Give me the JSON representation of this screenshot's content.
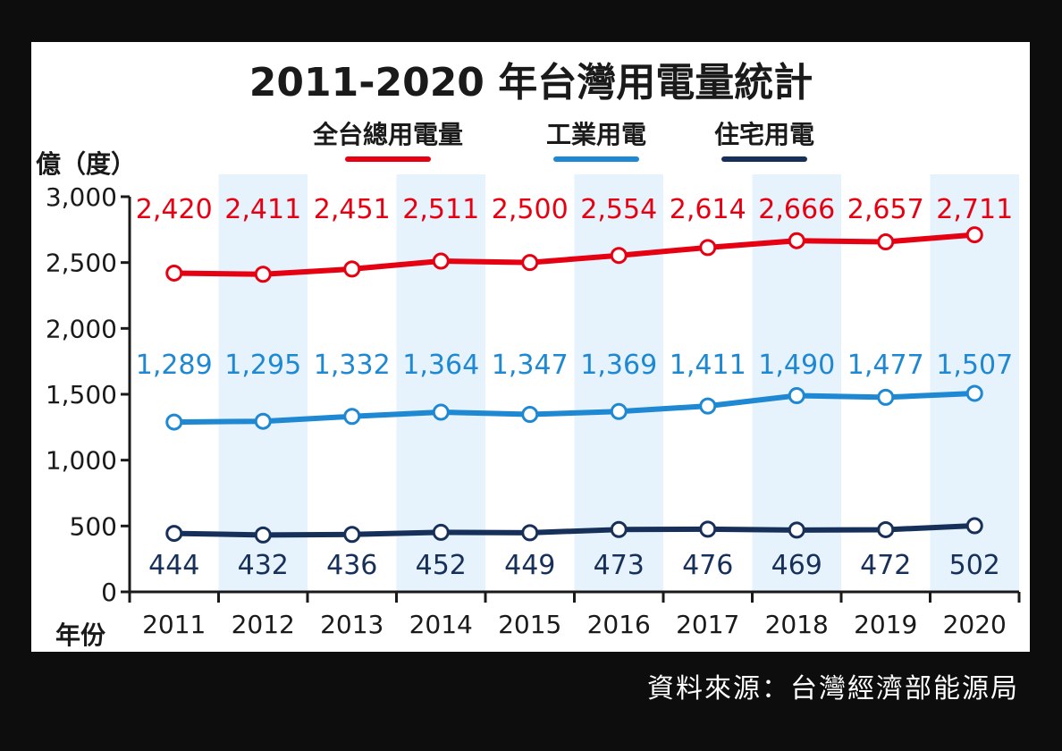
{
  "chart_data": {
    "type": "line",
    "title": "2011-2020 年台灣用電量統計",
    "ylabel": "億（度）",
    "xlabel": "年份",
    "ylim": [
      0,
      3000
    ],
    "yticks": [
      "3,000",
      "2,500",
      "2,000",
      "1,500",
      "1,000",
      "500",
      "0"
    ],
    "ytick_values": [
      3000,
      2500,
      2000,
      1500,
      1000,
      500,
      0
    ],
    "categories": [
      "2011",
      "2012",
      "2013",
      "2014",
      "2015",
      "2016",
      "2017",
      "2018",
      "2019",
      "2020"
    ],
    "series": [
      {
        "name": "全台總用電量",
        "color": "#e50012",
        "values": [
          2420,
          2411,
          2451,
          2511,
          2500,
          2554,
          2614,
          2666,
          2657,
          2711
        ],
        "labels": [
          "2,420",
          "2,411",
          "2,451",
          "2,511",
          "2,500",
          "2,554",
          "2,614",
          "2,666",
          "2,657",
          "2,711"
        ]
      },
      {
        "name": "工業用電",
        "color": "#1e88d2",
        "values": [
          1289,
          1295,
          1332,
          1364,
          1347,
          1369,
          1411,
          1490,
          1477,
          1507
        ],
        "labels": [
          "1,289",
          "1,295",
          "1,332",
          "1,364",
          "1,347",
          "1,369",
          "1,411",
          "1,490",
          "1,477",
          "1,507"
        ]
      },
      {
        "name": "住宅用電",
        "color": "#17305a",
        "values": [
          444,
          432,
          436,
          452,
          449,
          473,
          476,
          469,
          472,
          502
        ],
        "labels": [
          "444",
          "432",
          "436",
          "452",
          "449",
          "473",
          "476",
          "469",
          "472",
          "502"
        ]
      }
    ],
    "legend_position": "top-center",
    "grid": false,
    "band_color": "#e6f2fc"
  },
  "source": "資料來源：台灣經濟部能源局"
}
